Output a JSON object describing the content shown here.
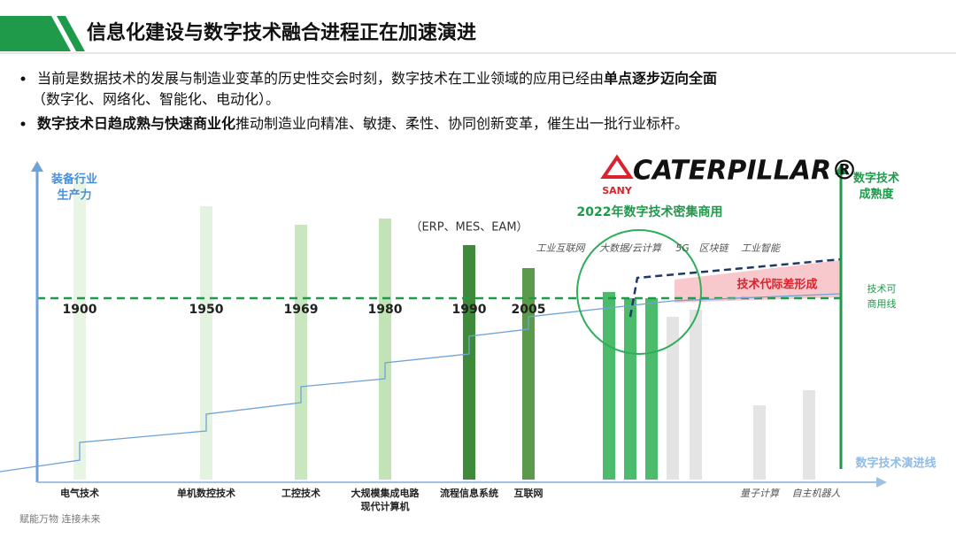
{
  "header": {
    "title": "信息化建设与数字技术融合进程正在加速演进"
  },
  "bullets": [
    {
      "parts": [
        "当前是数据技术的发展与制造业变革的历史性交会时刻，数字技术在工业领域的应用已经由",
        "单点逐步迈向全面",
        "（数字化、网络化、智能化、电动化）。"
      ]
    },
    {
      "parts": [
        "数字技术日趋成熟与快速商业化",
        "推动制造业向精准、敏捷、柔性、协同创新变革，催生出一批行业标杆。"
      ]
    }
  ],
  "diagram": {
    "left_axis": [
      "装备行业",
      "生产力"
    ],
    "right_axis": [
      "数字技术",
      "成熟度"
    ],
    "threshold": [
      "技术可",
      "商用线"
    ],
    "evolution_line": "数字技术演进线",
    "brands": [
      "SANY",
      "CATERPILLAR®"
    ],
    "highlight": "2022年数字技术密集商用",
    "systems_note": "（ERP、MES、EAM）",
    "gap": "技术代际差形成",
    "milestones": [
      {
        "year": "1900",
        "label": [
          "电气技术"
        ]
      },
      {
        "year": "1950",
        "label": [
          "单机数控技术"
        ]
      },
      {
        "year": "1969",
        "label": [
          "工控技术"
        ]
      },
      {
        "year": "1980",
        "label": [
          "大规模集成电路",
          "现代计算机"
        ]
      },
      {
        "year": "1990",
        "label": [
          "流程信息系统"
        ]
      },
      {
        "year": "2005",
        "label": [
          "互联网"
        ]
      }
    ],
    "technologies": [
      "工业互联网",
      "大数据/云计算",
      "5G",
      "区块链",
      "工业智能"
    ],
    "future": [
      "量子计算",
      "自主机器人"
    ]
  },
  "footer": "赋能万物  连接未来"
}
